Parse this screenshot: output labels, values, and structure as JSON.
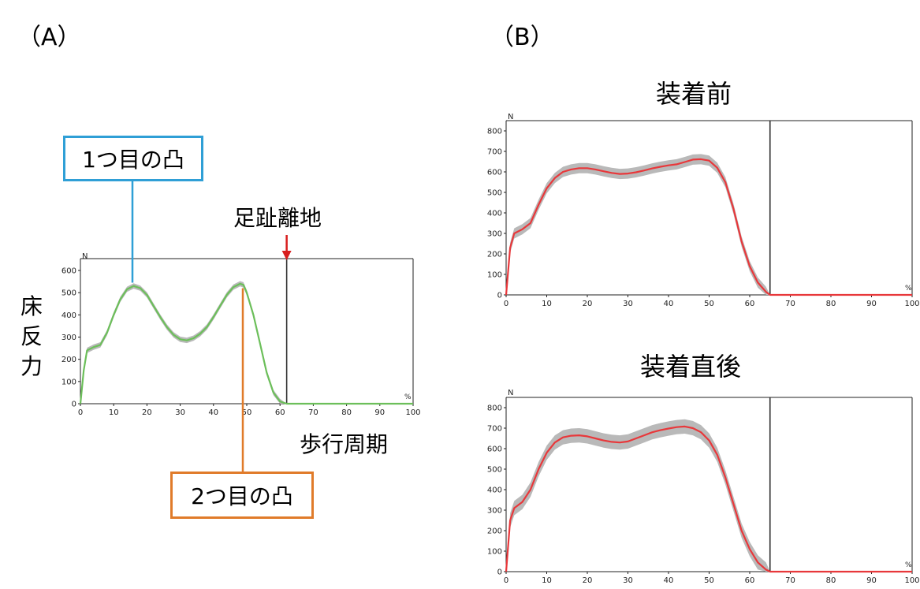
{
  "panels": {
    "a_label": "（A）",
    "b_label": "（B）"
  },
  "panel_a": {
    "ylabel": "床反力",
    "ylabel_chars": [
      "床",
      "反",
      "力"
    ],
    "xlabel": "歩行周期",
    "unit_y": "N",
    "unit_x": "%",
    "callout_first": "1つ目の凸",
    "callout_second": "2つ目の凸",
    "toe_off_label": "足趾離地"
  },
  "panel_b": {
    "top_title": "装着前",
    "bottom_title": "装着直後",
    "unit_y": "N",
    "unit_x": "%"
  },
  "colors": {
    "green_line": "#6cbf5a",
    "red_line": "#e8383b",
    "band": "#b9b9b9",
    "blue_callout": "#2f9fd6",
    "orange_callout": "#e07b2a",
    "arrow": "#d81e1e"
  },
  "chart_data": [
    {
      "id": "A",
      "type": "line",
      "title": "",
      "xlabel": "歩行周期",
      "ylabel": "床反力",
      "xlim": [
        0,
        100
      ],
      "ylim": [
        0,
        600
      ],
      "xticks": [
        0,
        10,
        20,
        30,
        40,
        50,
        60,
        70,
        80,
        90,
        100
      ],
      "yticks": [
        0,
        100,
        200,
        300,
        400,
        500,
        600
      ],
      "toe_off_x": 62,
      "band_halfwidth": 12,
      "series": [
        {
          "x": [
            0,
            1,
            2,
            4,
            6,
            8,
            10,
            12,
            14,
            16,
            18,
            20,
            22,
            24,
            26,
            28,
            30,
            32,
            34,
            36,
            38,
            40,
            42,
            44,
            46,
            48,
            49,
            50,
            52,
            54,
            56,
            58,
            60,
            62,
            65,
            70,
            80,
            90,
            100
          ],
          "y": [
            0,
            150,
            240,
            255,
            265,
            320,
            400,
            470,
            515,
            530,
            520,
            490,
            440,
            390,
            345,
            310,
            290,
            285,
            295,
            315,
            345,
            390,
            440,
            490,
            525,
            540,
            535,
            500,
            400,
            270,
            140,
            50,
            10,
            0,
            0,
            0,
            0,
            0,
            0
          ]
        }
      ]
    },
    {
      "id": "B-before",
      "type": "line",
      "title": "装着前",
      "xlim": [
        0,
        100
      ],
      "ylim": [
        0,
        800
      ],
      "xticks": [
        0,
        10,
        20,
        30,
        40,
        50,
        60,
        70,
        80,
        90,
        100
      ],
      "yticks": [
        0,
        100,
        200,
        300,
        400,
        500,
        600,
        700,
        800
      ],
      "toe_off_x": 65,
      "band_halfwidth": 25,
      "series": [
        {
          "x": [
            0,
            1,
            2,
            4,
            6,
            8,
            10,
            12,
            14,
            16,
            18,
            20,
            22,
            24,
            26,
            28,
            30,
            32,
            34,
            36,
            38,
            40,
            42,
            44,
            46,
            48,
            50,
            52,
            54,
            56,
            58,
            60,
            62,
            64,
            65,
            70,
            80,
            90,
            100
          ],
          "y": [
            0,
            230,
            300,
            320,
            350,
            440,
            520,
            570,
            600,
            612,
            618,
            618,
            612,
            603,
            595,
            590,
            592,
            598,
            607,
            617,
            625,
            632,
            637,
            648,
            660,
            662,
            655,
            620,
            550,
            420,
            260,
            140,
            60,
            15,
            0,
            0,
            0,
            0,
            0
          ]
        }
      ]
    },
    {
      "id": "B-after",
      "type": "line",
      "title": "装着直後",
      "xlim": [
        0,
        100
      ],
      "ylim": [
        0,
        800
      ],
      "xticks": [
        0,
        10,
        20,
        30,
        40,
        50,
        60,
        70,
        80,
        90,
        100
      ],
      "yticks": [
        0,
        100,
        200,
        300,
        400,
        500,
        600,
        700,
        800
      ],
      "toe_off_x": 65,
      "band_halfwidth": 35,
      "series": [
        {
          "x": [
            0,
            1,
            2,
            4,
            6,
            8,
            10,
            12,
            14,
            16,
            18,
            20,
            22,
            24,
            26,
            28,
            30,
            32,
            34,
            36,
            38,
            40,
            42,
            44,
            46,
            48,
            50,
            52,
            54,
            56,
            58,
            60,
            62,
            64,
            65,
            70,
            80,
            90,
            100
          ],
          "y": [
            0,
            250,
            310,
            340,
            400,
            500,
            580,
            630,
            655,
            663,
            665,
            660,
            650,
            640,
            633,
            630,
            635,
            650,
            665,
            680,
            690,
            698,
            705,
            708,
            700,
            680,
            640,
            570,
            460,
            330,
            200,
            110,
            45,
            10,
            0,
            0,
            0,
            0,
            0
          ]
        }
      ]
    }
  ]
}
